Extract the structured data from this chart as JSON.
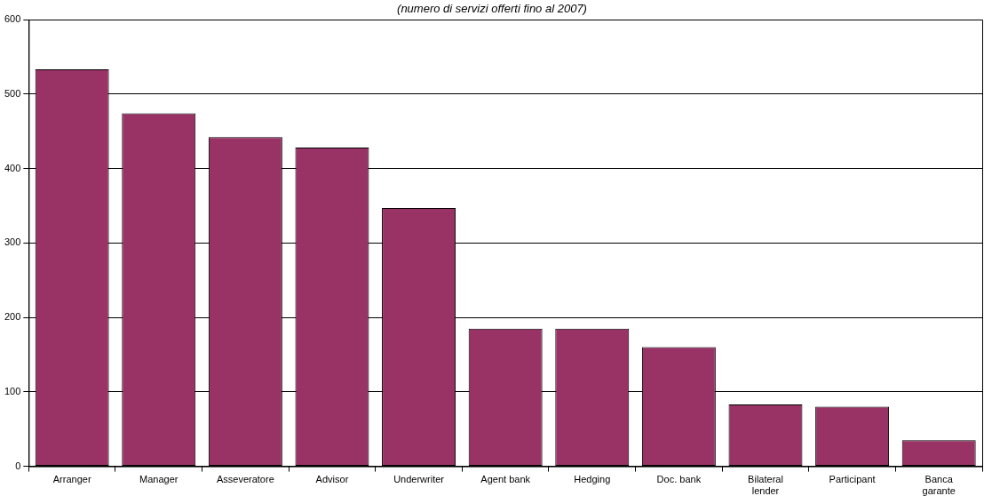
{
  "chart_data": {
    "type": "bar",
    "title": "(numero di servizi offerti fino al 2007)",
    "categories": [
      "Arranger",
      "Manager",
      "Asseveratore",
      "Advisor",
      "Underwriter",
      "Agent bank",
      "Hedging",
      "Doc. bank",
      "Bilateral\nlender",
      "Participant",
      "Banca\ngarante"
    ],
    "values": [
      533,
      474,
      442,
      428,
      347,
      185,
      185,
      160,
      83,
      80,
      35
    ],
    "color": "#993366",
    "ylim": [
      0,
      600
    ],
    "yticks": [
      0,
      100,
      200,
      300,
      400,
      500,
      600
    ],
    "grid": "y",
    "legend": false
  }
}
